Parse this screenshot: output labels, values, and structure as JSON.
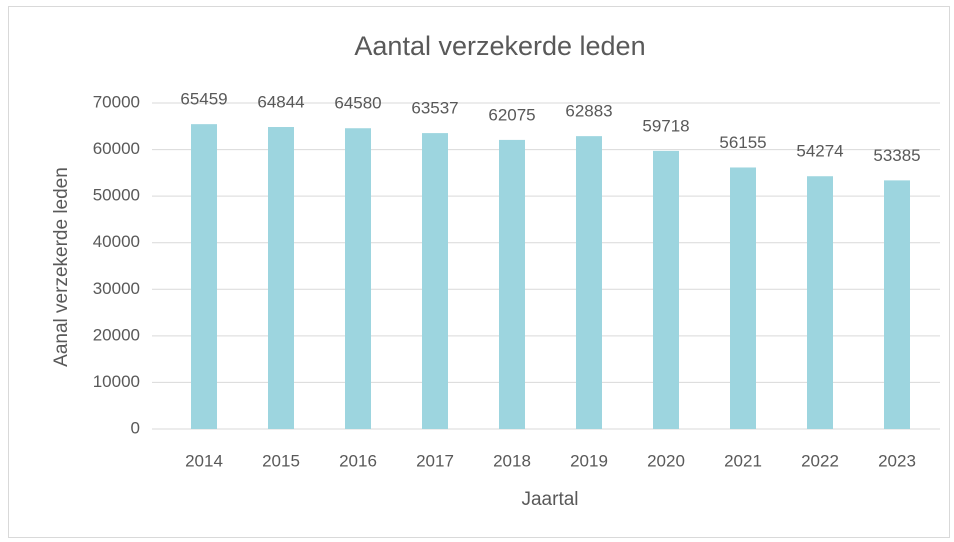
{
  "chart_data": {
    "type": "bar",
    "title": "Aantal verzekerde leden",
    "x_label": "Jaartal",
    "y_label": "Aanal verzekerde leden",
    "categories": [
      "2014",
      "2015",
      "2016",
      "2017",
      "2018",
      "2019",
      "2020",
      "2021",
      "2022",
      "2023"
    ],
    "values": [
      65459,
      64844,
      64580,
      63537,
      62075,
      62883,
      59718,
      56155,
      54274,
      53385
    ],
    "color": "#9dd5df",
    "ylim": [
      0,
      70000
    ],
    "yticks": [
      0,
      10000,
      20000,
      30000,
      40000,
      50000,
      60000,
      70000
    ],
    "grid": true,
    "data_labels": true
  }
}
